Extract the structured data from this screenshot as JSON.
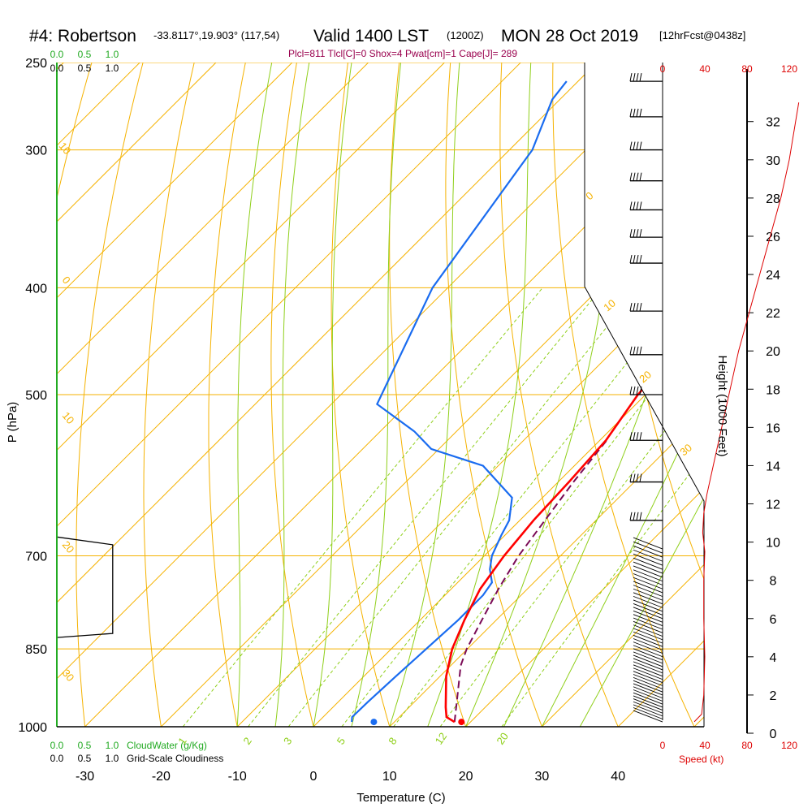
{
  "header": {
    "station": "#4: Robertson",
    "coords": "-33.8117°,19.903° (117,54)",
    "valid": "Valid 1400 LST",
    "utc": "(1200Z)",
    "date": "MON 28 Oct 2019",
    "fcst": "[12hrFcst@0438z]",
    "params": "Plcl=811 Tlcl[C]=0 Shox=4 Pwat[cm]=1 Cape[J]= 289"
  },
  "colors": {
    "temperature": "#ff0000",
    "dewpoint": "#1a6cf0",
    "parcel": "#7a0a55",
    "isotherm": "#f5b200",
    "dry_adiabat": "#f5b200",
    "moist_adiabat": "#8fcf1a",
    "mixing_ratio": "#8fcf1a",
    "cloud_water": "#22aa22",
    "speed": "#dd0000"
  },
  "chart_data": {
    "type": "skew-t",
    "xlabel": "Temperature (C)",
    "ylabel": "P (hPa)",
    "right_label": "Height (1000 Feet)",
    "pressure_ticks": [
      "250",
      "300",
      "400",
      "500",
      "700",
      "850",
      "1000"
    ],
    "temperature_ticks": [
      "-30",
      "-20",
      "-10",
      "0",
      "10",
      "20",
      "30",
      "40"
    ],
    "height_ticks": [
      "0",
      "2",
      "4",
      "6",
      "8",
      "10",
      "12",
      "14",
      "16",
      "18",
      "20",
      "22",
      "24",
      "26",
      "28",
      "30",
      "32"
    ],
    "dry_adiabat_labels": [
      "10",
      "0",
      "10",
      "20",
      "30",
      "0",
      "10",
      "20",
      "30"
    ],
    "mixing_ratio_labels": [
      "1",
      "2",
      "3",
      "5",
      "8",
      "12",
      "20"
    ],
    "cloud_water_scale": [
      "0.0",
      "0.5",
      "1.0"
    ],
    "cloudiness_scale": [
      "0.0",
      "0.5",
      "1.0"
    ],
    "cloud_water_label": "CloudWater (g/Kg)",
    "cloudiness_label": "Grid-Scale Cloudiness",
    "speed_scale": [
      "0",
      "40",
      "80",
      "120"
    ],
    "speed_label": "Speed (kt)",
    "temperature_profile": [
      {
        "p": 990,
        "t": 17.9
      },
      {
        "p": 980,
        "t": 16.2
      },
      {
        "p": 960,
        "t": 14.8
      },
      {
        "p": 940,
        "t": 13.5
      },
      {
        "p": 900,
        "t": 10.8
      },
      {
        "p": 850,
        "t": 8.0
      },
      {
        "p": 800,
        "t": 5.8
      },
      {
        "p": 750,
        "t": 3.8
      },
      {
        "p": 700,
        "t": 2.6
      },
      {
        "p": 650,
        "t": 1.8
      },
      {
        "p": 600,
        "t": 1.4
      },
      {
        "p": 550,
        "t": 0.8
      },
      {
        "p": 500,
        "t": -1.0
      },
      {
        "p": 450,
        "t": -1.8
      },
      {
        "p": 400,
        "t": -2.2
      },
      {
        "p": 360,
        "t": -2.4
      },
      {
        "p": 340,
        "t": -2.1
      },
      {
        "p": 300,
        "t": -0.5
      },
      {
        "p": 270,
        "t": 0.5
      },
      {
        "p": 260,
        "t": 0.6
      }
    ],
    "dewpoint_profile": [
      {
        "p": 990,
        "t": 4.4
      },
      {
        "p": 980,
        "t": 3.8
      },
      {
        "p": 950,
        "t": 3.9
      },
      {
        "p": 900,
        "t": 4.2
      },
      {
        "p": 850,
        "t": 4.6
      },
      {
        "p": 800,
        "t": 5.0
      },
      {
        "p": 760,
        "t": 5.0
      },
      {
        "p": 740,
        "t": 4.5
      },
      {
        "p": 720,
        "t": 2.5
      },
      {
        "p": 700,
        "t": 1.0
      },
      {
        "p": 670,
        "t": -0.5
      },
      {
        "p": 650,
        "t": -1.4
      },
      {
        "p": 620,
        "t": -4.0
      },
      {
        "p": 580,
        "t": -12.0
      },
      {
        "p": 560,
        "t": -21.0
      },
      {
        "p": 540,
        "t": -25.5
      },
      {
        "p": 510,
        "t": -34.0
      },
      {
        "p": 400,
        "t": -42.0
      },
      {
        "p": 300,
        "t": -47.0
      },
      {
        "p": 270,
        "t": -51.0
      },
      {
        "p": 260,
        "t": -51.5
      }
    ],
    "parcel_profile": [
      {
        "p": 990,
        "t": 17.9
      },
      {
        "p": 940,
        "t": 15.0
      },
      {
        "p": 880,
        "t": 11.3
      },
      {
        "p": 850,
        "t": 9.9
      },
      {
        "p": 811,
        "t": 8.5
      },
      {
        "p": 750,
        "t": 6.2
      },
      {
        "p": 700,
        "t": 4.5
      },
      {
        "p": 650,
        "t": 3.3
      },
      {
        "p": 600,
        "t": 2.0
      },
      {
        "p": 550,
        "t": 0.9
      }
    ],
    "surface_temperature": {
      "p": 990,
      "t": 18.8
    },
    "surface_dewpoint": {
      "p": 990,
      "t": 7.3
    },
    "wind_speed_profile": [
      {
        "h": 0.6,
        "s": 30
      },
      {
        "h": 1.0,
        "s": 37
      },
      {
        "h": 2.0,
        "s": 39
      },
      {
        "h": 4.0,
        "s": 40
      },
      {
        "h": 6.0,
        "s": 39
      },
      {
        "h": 8.0,
        "s": 39
      },
      {
        "h": 9.5,
        "s": 40
      },
      {
        "h": 10.5,
        "s": 38
      },
      {
        "h": 11.5,
        "s": 39
      },
      {
        "h": 12.5,
        "s": 42
      },
      {
        "h": 14.0,
        "s": 48
      },
      {
        "h": 16.0,
        "s": 56
      },
      {
        "h": 18.0,
        "s": 64
      },
      {
        "h": 20.0,
        "s": 72
      },
      {
        "h": 22.0,
        "s": 82
      },
      {
        "h": 24.0,
        "s": 92
      },
      {
        "h": 26.0,
        "s": 102
      },
      {
        "h": 28.0,
        "s": 112
      },
      {
        "h": 30.0,
        "s": 120
      },
      {
        "h": 32.0,
        "s": 126
      },
      {
        "h": 33.0,
        "s": 129
      }
    ],
    "wind_barbs_upper_pressures": [
      260,
      280,
      300,
      320,
      340,
      360,
      380,
      420,
      460,
      500,
      550,
      600,
      650
    ],
    "cloudiness_profile": [
      {
        "p": 830,
        "c": 0.0
      },
      {
        "p": 823,
        "c": 0.74
      },
      {
        "p": 684,
        "c": 0.74
      },
      {
        "p": 673,
        "c": 0.0
      }
    ]
  }
}
